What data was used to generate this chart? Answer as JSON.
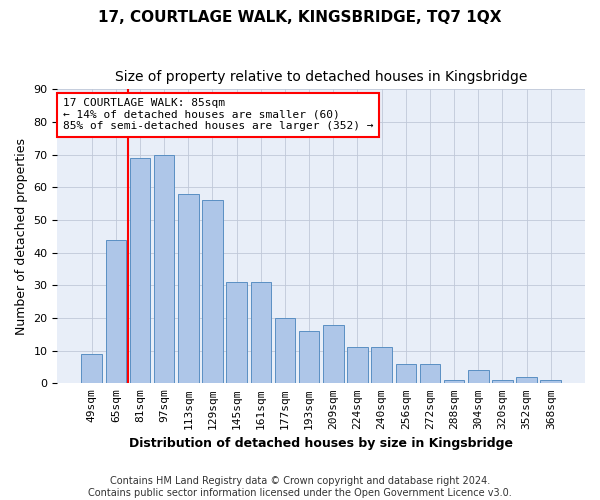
{
  "title": "17, COURTLAGE WALK, KINGSBRIDGE, TQ7 1QX",
  "subtitle": "Size of property relative to detached houses in Kingsbridge",
  "xlabel": "Distribution of detached houses by size in Kingsbridge",
  "ylabel": "Number of detached properties",
  "bar_values": [
    9,
    44,
    69,
    70,
    58,
    56,
    31,
    31,
    20,
    16,
    18,
    11,
    11,
    6,
    6,
    1,
    4,
    1,
    2,
    1
  ],
  "bar_labels": [
    "49sqm",
    "65sqm",
    "81sqm",
    "97sqm",
    "113sqm",
    "129sqm",
    "145sqm",
    "161sqm",
    "177sqm",
    "193sqm",
    "209sqm",
    "224sqm",
    "240sqm",
    "256sqm",
    "272sqm",
    "288sqm",
    "304sqm",
    "320sqm",
    "352sqm",
    "368sqm"
  ],
  "bar_color": "#aec6e8",
  "bar_edge_color": "#5a8fc3",
  "vline_x_index": 2,
  "vline_color": "red",
  "annotation_text": "17 COURTLAGE WALK: 85sqm\n← 14% of detached houses are smaller (60)\n85% of semi-detached houses are larger (352) →",
  "annotation_box_color": "white",
  "annotation_box_edge": "red",
  "ylim": [
    0,
    90
  ],
  "yticks": [
    0,
    10,
    20,
    30,
    40,
    50,
    60,
    70,
    80,
    90
  ],
  "background_color": "#e8eef8",
  "footer_line1": "Contains HM Land Registry data © Crown copyright and database right 2024.",
  "footer_line2": "Contains public sector information licensed under the Open Government Licence v3.0.",
  "title_fontsize": 11,
  "subtitle_fontsize": 10,
  "xlabel_fontsize": 9,
  "ylabel_fontsize": 9,
  "tick_fontsize": 8,
  "annotation_fontsize": 8,
  "footer_fontsize": 7
}
